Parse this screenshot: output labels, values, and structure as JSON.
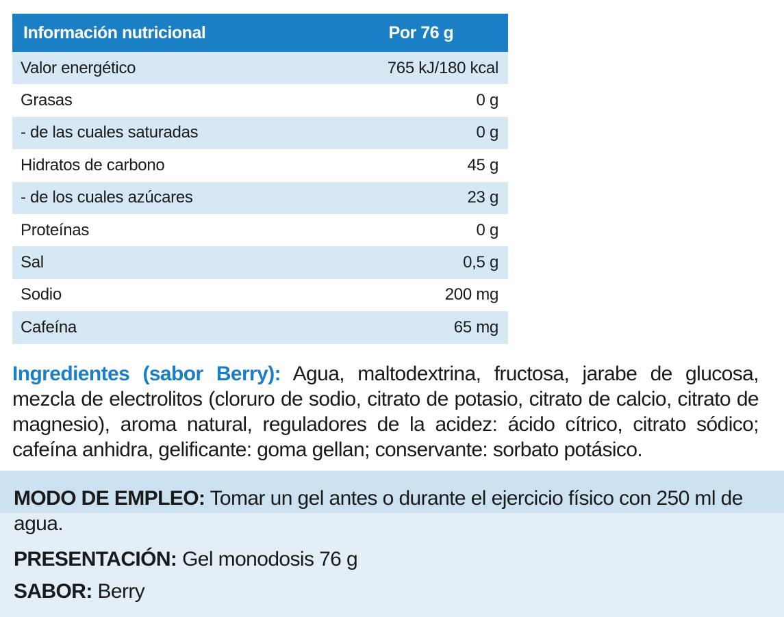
{
  "table": {
    "header": {
      "label": "Información nutricional",
      "value": "Por 76 g"
    },
    "rows": [
      {
        "name": "Valor energético",
        "value": "765 kJ/180 kcal"
      },
      {
        "name": "Grasas",
        "value": "0 g"
      },
      {
        "name": "- de las cuales saturadas",
        "value": "0 g"
      },
      {
        "name": "Hidratos de carbono",
        "value": "45 g"
      },
      {
        "name": "- de los cuales azúcares",
        "value": "23 g"
      },
      {
        "name": "Proteínas",
        "value": "0 g"
      },
      {
        "name": "Sal",
        "value": "0,5 g"
      },
      {
        "name": "Sodio",
        "value": "200 mg"
      },
      {
        "name": "Cafeína",
        "value": "65 mg"
      }
    ]
  },
  "ingredients": {
    "label": "Ingredientes (sabor Berry):",
    "text": " Agua, maltodextrina, fructosa, jarabe de glucosa, mezcla de electrolitos (cloruro de sodio, citrato de potasio, citrato de calcio, citrato de magnesio), aroma natural, reguladores de la acidez: ácido cítrico, citrato sódico; cafeína anhidra, gelificante: goma gellan; conservante: sorbato potásico."
  },
  "usage": {
    "label": "MODO DE EMPLEO:",
    "text": " Tomar un gel antes o durante el ejercicio físico con 250 ml de agua."
  },
  "presentation": {
    "label": "PRESENTACIÓN:",
    "text": " Gel monodosis 76 g"
  },
  "flavor": {
    "label": "SABOR:",
    "text": " Berry"
  },
  "colors": {
    "accent": "#1a7fc4",
    "row_shade": "#d6e8f4",
    "panel": "#e3eef7"
  }
}
